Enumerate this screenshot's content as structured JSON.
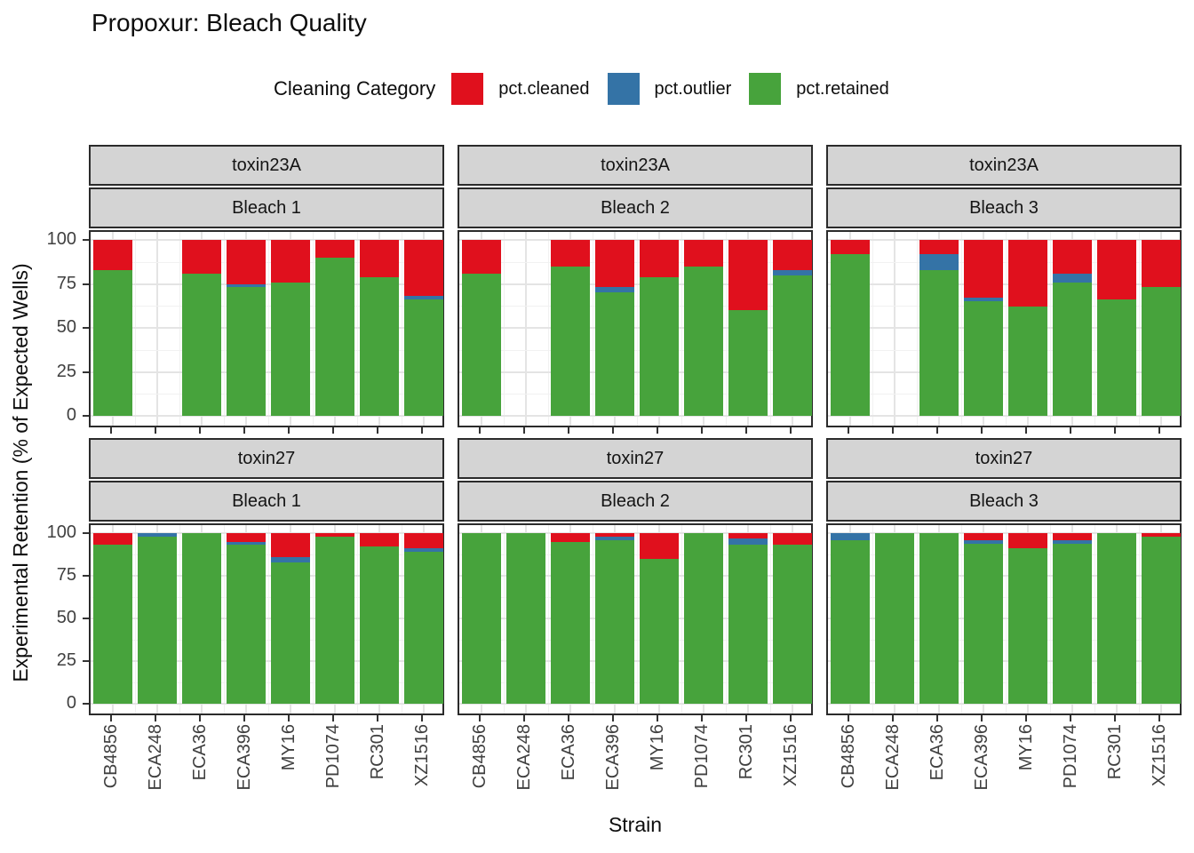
{
  "title": "Propoxur: Bleach Quality",
  "legend": {
    "title": "Cleaning Category",
    "items": [
      {
        "label": "pct.cleaned",
        "color": "#e0101d"
      },
      {
        "label": "pct.outlier",
        "color": "#3473a6"
      },
      {
        "label": "pct.retained",
        "color": "#47a33c"
      }
    ]
  },
  "chart_data": {
    "type": "bar",
    "stacked": true,
    "title": "Propoxur: Bleach Quality",
    "xlabel": "Strain",
    "ylabel": "Experimental Retention (% of Expected Wells)",
    "ylim": [
      0,
      100
    ],
    "yticks": [
      0,
      25,
      50,
      75,
      100
    ],
    "grid": "on",
    "legend_position": "top",
    "facet_rows": [
      "toxin23A",
      "toxin27"
    ],
    "facet_cols": [
      "Bleach 1",
      "Bleach 2",
      "Bleach 3"
    ],
    "strains": [
      "CB4856",
      "ECA248",
      "ECA36",
      "ECA396",
      "MY16",
      "PD1074",
      "RC301",
      "XZ1516"
    ],
    "series_stack_order": [
      "pct.retained",
      "pct.outlier",
      "pct.cleaned"
    ],
    "colors": {
      "pct.cleaned": "#e0101d",
      "pct.outlier": "#3473a6",
      "pct.retained": "#47a33c"
    },
    "facets": [
      {
        "toxin": "toxin23A",
        "bleach": "Bleach 1",
        "pct_retained": [
          83,
          null,
          81,
          73,
          76,
          90,
          79,
          66
        ],
        "pct_outlier": [
          0,
          null,
          0,
          2,
          0,
          0,
          0,
          2
        ],
        "pct_cleaned": [
          17,
          null,
          19,
          25,
          24,
          10,
          21,
          32
        ]
      },
      {
        "toxin": "toxin23A",
        "bleach": "Bleach 2",
        "pct_retained": [
          81,
          null,
          85,
          70,
          79,
          85,
          60,
          80
        ],
        "pct_outlier": [
          0,
          null,
          0,
          3,
          0,
          0,
          0,
          3
        ],
        "pct_cleaned": [
          19,
          null,
          15,
          27,
          21,
          15,
          40,
          17
        ]
      },
      {
        "toxin": "toxin23A",
        "bleach": "Bleach 3",
        "pct_retained": [
          92,
          null,
          83,
          65,
          62,
          76,
          66,
          73
        ],
        "pct_outlier": [
          0,
          null,
          9,
          2,
          0,
          5,
          0,
          0
        ],
        "pct_cleaned": [
          8,
          null,
          8,
          33,
          38,
          19,
          34,
          27
        ]
      },
      {
        "toxin": "toxin27",
        "bleach": "Bleach 1",
        "pct_retained": [
          93,
          98,
          100,
          93,
          83,
          98,
          92,
          89
        ],
        "pct_outlier": [
          0,
          2,
          0,
          2,
          3,
          0,
          0,
          2
        ],
        "pct_cleaned": [
          7,
          0,
          0,
          5,
          14,
          2,
          8,
          9
        ]
      },
      {
        "toxin": "toxin27",
        "bleach": "Bleach 2",
        "pct_retained": [
          100,
          100,
          95,
          96,
          85,
          100,
          93,
          93
        ],
        "pct_outlier": [
          0,
          0,
          0,
          2,
          0,
          0,
          4,
          0
        ],
        "pct_cleaned": [
          0,
          0,
          5,
          2,
          15,
          0,
          3,
          7
        ]
      },
      {
        "toxin": "toxin27",
        "bleach": "Bleach 3",
        "pct_retained": [
          96,
          100,
          100,
          94,
          91,
          94,
          100,
          98
        ],
        "pct_outlier": [
          4,
          0,
          0,
          2,
          0,
          2,
          0,
          0
        ],
        "pct_cleaned": [
          0,
          0,
          0,
          4,
          9,
          4,
          0,
          2
        ]
      }
    ]
  }
}
